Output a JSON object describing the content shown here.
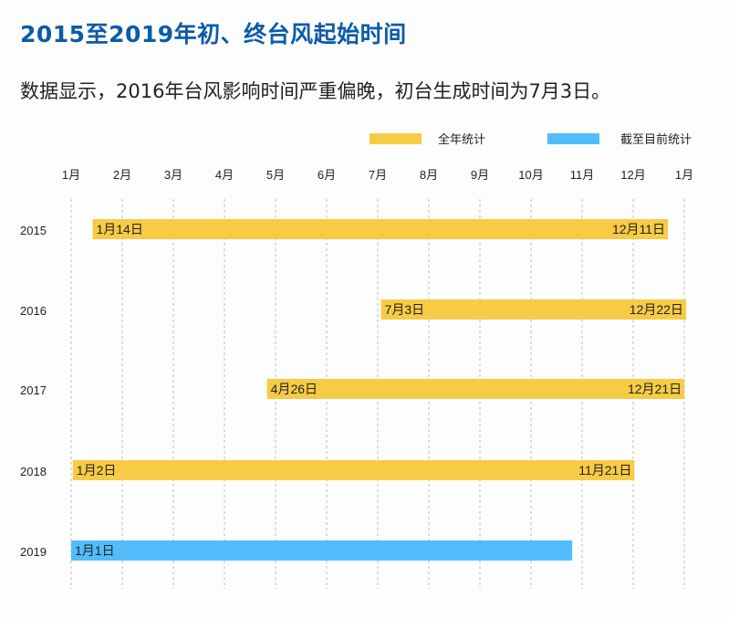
{
  "header": {
    "title": "2015至2019年初、终台风起始时间",
    "subtitle": "数据显示，2016年台风影响时间严重偏晚，初台生成时间为7月3日。"
  },
  "chart_data": {
    "type": "bar",
    "orientation": "horizontal-range",
    "title": "2015至2019年初、终台风起始时间",
    "x_ticks": [
      "1月",
      "2月",
      "3月",
      "4月",
      "5月",
      "6月",
      "7月",
      "8月",
      "9月",
      "10月",
      "11月",
      "12月",
      "1月"
    ],
    "xlim": [
      "01-01",
      "next 01-01"
    ],
    "grid": "vertical dashed",
    "legend": {
      "placement": "top-right",
      "entries": [
        {
          "name": "全年统计",
          "color": "#f8cb45"
        },
        {
          "name": "截至目前统计",
          "color": "#52bcfc"
        }
      ]
    },
    "rows": [
      {
        "year": "2015",
        "start": [
          1,
          14
        ],
        "end": [
          12,
          11
        ],
        "start_label": "1月14日",
        "end_label": "12月11日",
        "series": "全年统计"
      },
      {
        "year": "2016",
        "start": [
          7,
          3
        ],
        "end": [
          12,
          22
        ],
        "start_label": "7月3日",
        "end_label": "12月22日",
        "series": "全年统计"
      },
      {
        "year": "2017",
        "start": [
          4,
          26
        ],
        "end": [
          12,
          21
        ],
        "start_label": "4月26日",
        "end_label": "12月21日",
        "series": "全年统计"
      },
      {
        "year": "2018",
        "start": [
          1,
          2
        ],
        "end": [
          11,
          21
        ],
        "start_label": "1月2日",
        "end_label": "11月21日",
        "series": "全年统计"
      },
      {
        "year": "2019",
        "start": [
          1,
          1
        ],
        "end": [
          10,
          26
        ],
        "start_label": "1月1日",
        "end_label": "",
        "series": "截至目前统计"
      }
    ]
  }
}
